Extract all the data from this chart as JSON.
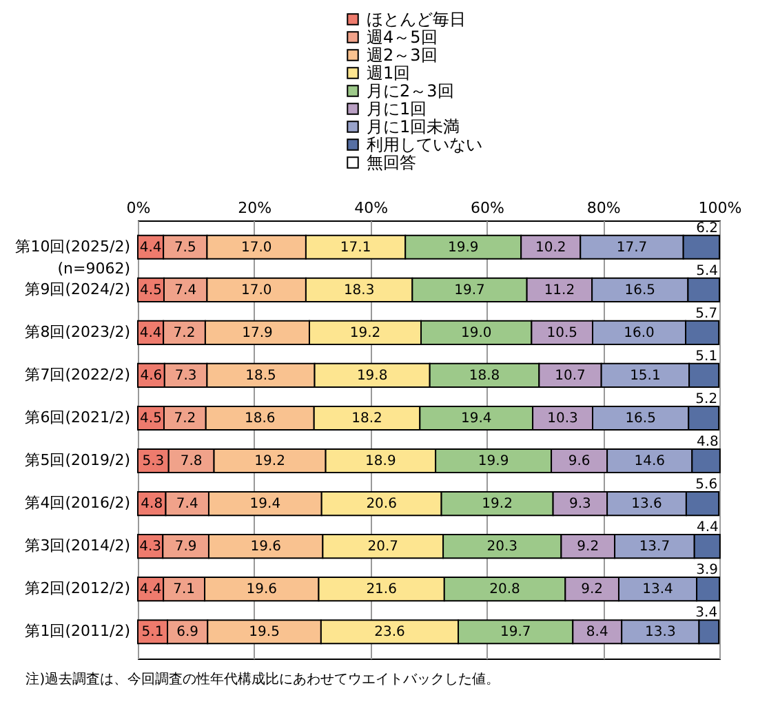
{
  "chart_data": {
    "type": "bar",
    "orientation": "horizontal",
    "stacked": true,
    "categories": [
      "第10回(2025/2)\n(n=9062)",
      "第9回(2024/2)",
      "第8回(2023/2)",
      "第7回(2022/2)",
      "第6回(2021/2)",
      "第5回(2019/2)",
      "第4回(2016/2)",
      "第3回(2014/2)",
      "第2回(2012/2)",
      "第1回(2011/2)"
    ],
    "series": [
      {
        "name": "ほとんど毎日",
        "color": "#ee7b6d",
        "values": [
          4.4,
          4.5,
          4.4,
          4.6,
          4.5,
          5.3,
          4.8,
          4.3,
          4.4,
          5.1
        ],
        "value_labels": [
          "4.4",
          "4.5",
          "4.4",
          "4.6",
          "4.5",
          "5.3",
          "4.8",
          "4.3",
          "4.4",
          "5.1"
        ]
      },
      {
        "name": "週4～5回",
        "color": "#f0a28a",
        "values": [
          7.5,
          7.4,
          7.2,
          7.3,
          7.2,
          7.8,
          7.4,
          7.9,
          7.1,
          6.9
        ],
        "value_labels": [
          "7.5",
          "7.4",
          "7.2",
          "7.3",
          "7.2",
          "7.8",
          "7.4",
          "7.9",
          "7.1",
          "6.9"
        ]
      },
      {
        "name": "週2～3回",
        "color": "#f9c290",
        "values": [
          17.0,
          17.0,
          17.9,
          18.5,
          18.6,
          19.2,
          19.4,
          19.6,
          19.6,
          19.5
        ],
        "value_labels": [
          "17.0",
          "17.0",
          "17.9",
          "18.5",
          "18.6",
          "19.2",
          "19.4",
          "19.6",
          "19.6",
          "19.5"
        ]
      },
      {
        "name": "週1回",
        "color": "#fde590",
        "values": [
          17.1,
          18.3,
          19.2,
          19.8,
          18.2,
          18.9,
          20.6,
          20.7,
          21.6,
          23.6
        ],
        "value_labels": [
          "17.1",
          "18.3",
          "19.2",
          "19.8",
          "18.2",
          "18.9",
          "20.6",
          "20.7",
          "21.6",
          "23.6"
        ]
      },
      {
        "name": "月に2～3回",
        "color": "#9dc98a",
        "values": [
          19.9,
          19.7,
          19.0,
          18.8,
          19.4,
          19.9,
          19.2,
          20.3,
          20.8,
          19.7
        ],
        "value_labels": [
          "19.9",
          "19.7",
          "19.0",
          "18.8",
          "19.4",
          "19.9",
          "19.2",
          "20.3",
          "20.8",
          "19.7"
        ]
      },
      {
        "name": "月に1回",
        "color": "#b99fc3",
        "values": [
          10.2,
          11.2,
          10.5,
          10.7,
          10.3,
          9.6,
          9.3,
          9.2,
          9.2,
          8.4
        ],
        "value_labels": [
          "10.2",
          "11.2",
          "10.5",
          "10.7",
          "10.3",
          "9.6",
          "9.3",
          "9.2",
          "9.2",
          "8.4"
        ]
      },
      {
        "name": "月に1回未満",
        "color": "#99a3cb",
        "values": [
          17.7,
          16.5,
          16.0,
          15.1,
          16.5,
          14.6,
          13.6,
          13.7,
          13.4,
          13.3
        ],
        "value_labels": [
          "17.7",
          "16.5",
          "16.0",
          "15.1",
          "16.5",
          "14.6",
          "13.6",
          "13.7",
          "13.4",
          "13.3"
        ]
      },
      {
        "name": "利用していない",
        "color": "#566fa3",
        "values": [
          6.2,
          5.4,
          5.7,
          5.1,
          5.2,
          4.8,
          5.6,
          4.4,
          3.9,
          3.4
        ],
        "value_labels": [
          "6.2",
          "5.4",
          "5.7",
          "5.1",
          "5.2",
          "4.8",
          "5.6",
          "4.4",
          "3.9",
          "3.4"
        ]
      },
      {
        "name": "無回答",
        "color": "#ffffff",
        "values": [
          null,
          null,
          null,
          null,
          null,
          null,
          null,
          null,
          null,
          null
        ]
      }
    ],
    "xlim": [
      0,
      100
    ],
    "xticks": [
      {
        "value": 0,
        "label": "0%"
      },
      {
        "value": 20,
        "label": "20%"
      },
      {
        "value": 40,
        "label": "40%"
      },
      {
        "value": 60,
        "label": "60%"
      },
      {
        "value": 80,
        "label": "80%"
      },
      {
        "value": 100,
        "label": "100%"
      }
    ],
    "grid": "x",
    "legend": "top",
    "annotations": [
      "注)過去調査は、今回調査の性年代構成比にあわせてウエイトバックした値。"
    ]
  }
}
